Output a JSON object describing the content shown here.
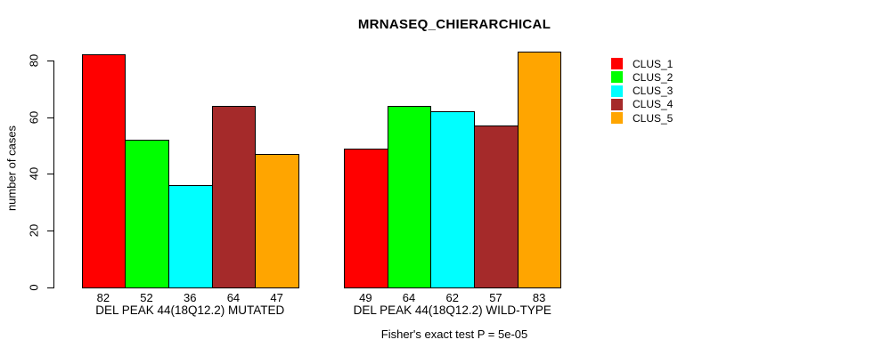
{
  "chart_data": {
    "type": "bar",
    "title": "MRNASEQ_CHIERARCHICAL",
    "ylabel": "number of cases",
    "xlabel": "",
    "yticks": [
      0,
      20,
      40,
      60,
      80
    ],
    "ylim": [
      0,
      85
    ],
    "grid": false,
    "legend_position": "right-inside",
    "clusters": [
      {
        "name": "CLUS_1",
        "color": "#FF0000"
      },
      {
        "name": "CLUS_2",
        "color": "#00FF00"
      },
      {
        "name": "CLUS_3",
        "color": "#00FFFF"
      },
      {
        "name": "CLUS_4",
        "color": "#A52A2A"
      },
      {
        "name": "CLUS_5",
        "color": "#FFA500"
      }
    ],
    "groups": [
      {
        "label": "DEL PEAK 44(18Q12.2) MUTATED",
        "values": [
          82,
          52,
          36,
          64,
          47
        ]
      },
      {
        "label": "DEL PEAK 44(18Q12.2) WILD-TYPE",
        "values": [
          49,
          64,
          62,
          57,
          83
        ]
      }
    ],
    "annotation": "Fisher's exact test P = 5e-05"
  }
}
